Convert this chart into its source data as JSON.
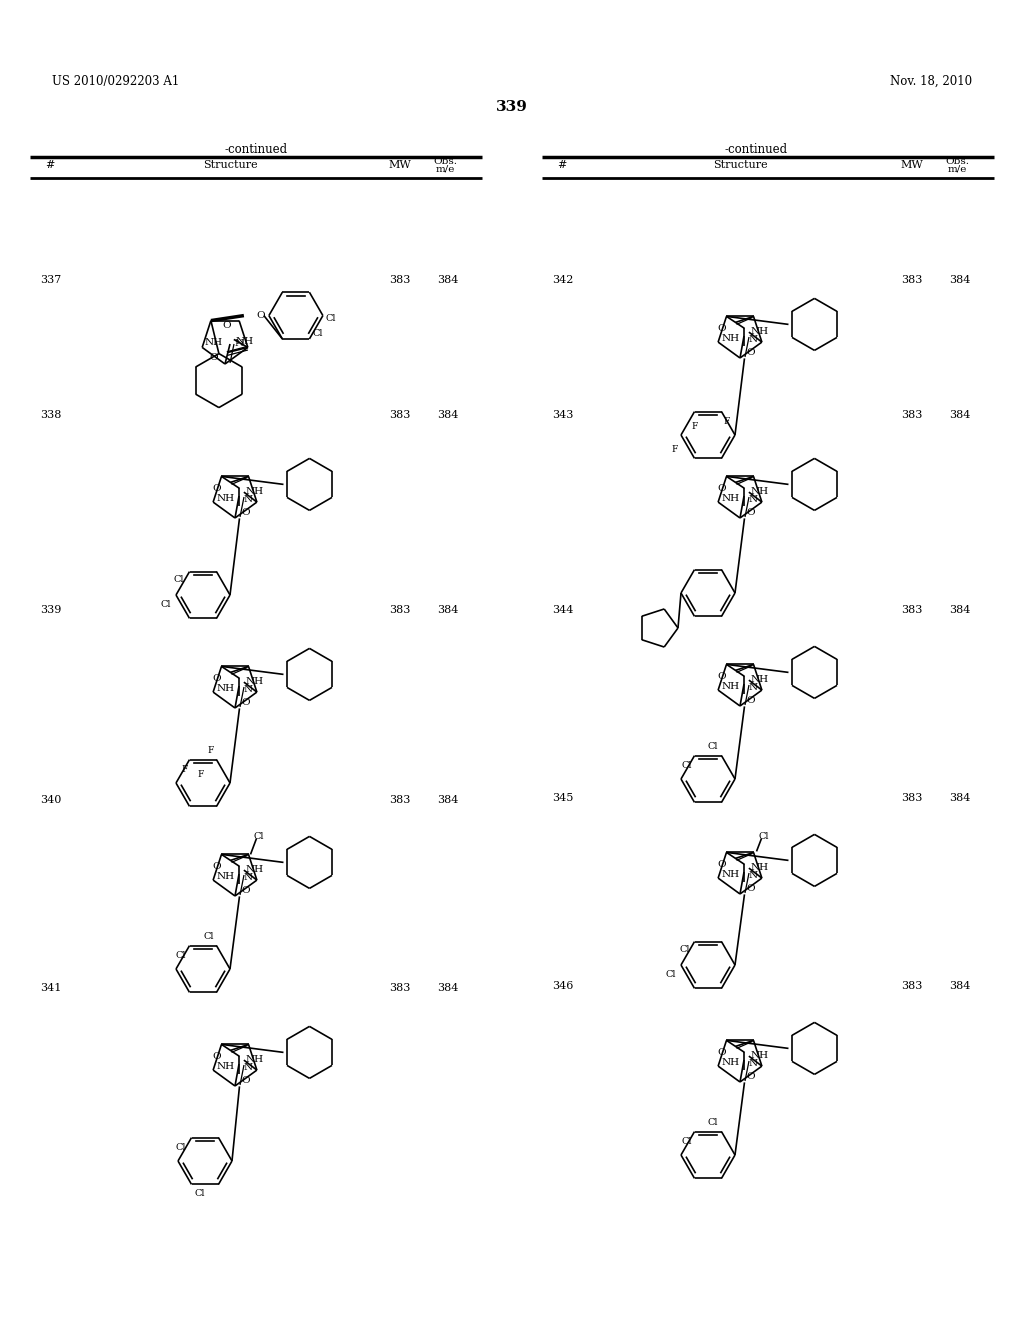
{
  "patent_number": "US 2010/0292203 A1",
  "patent_date": "Nov. 18, 2010",
  "page_number": "339",
  "background_color": "#ffffff",
  "left_compounds": [
    {
      "num": "337",
      "mw": "383",
      "obs": "384"
    },
    {
      "num": "338",
      "mw": "383",
      "obs": "384"
    },
    {
      "num": "339",
      "mw": "383",
      "obs": "384"
    },
    {
      "num": "340",
      "mw": "383",
      "obs": "384"
    },
    {
      "num": "341",
      "mw": "383",
      "obs": "384"
    }
  ],
  "right_compounds": [
    {
      "num": "342",
      "mw": "383",
      "obs": "384"
    },
    {
      "num": "343",
      "mw": "383",
      "obs": "384"
    },
    {
      "num": "344",
      "mw": "383",
      "obs": "384"
    },
    {
      "num": "345",
      "mw": "383",
      "obs": "384"
    },
    {
      "num": "346",
      "mw": "383",
      "obs": "384"
    }
  ]
}
